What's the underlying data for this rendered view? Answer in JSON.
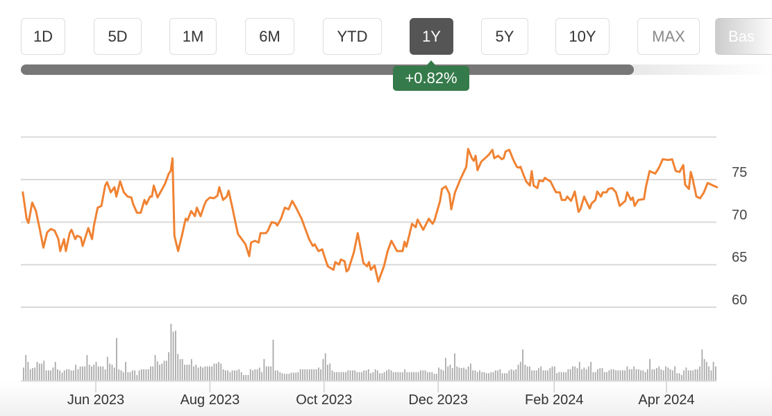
{
  "range_buttons": [
    {
      "label": "1D",
      "active": false
    },
    {
      "label": "5D",
      "active": false
    },
    {
      "label": "1M",
      "active": false
    },
    {
      "label": "6M",
      "active": false
    },
    {
      "label": "YTD",
      "active": false
    },
    {
      "label": "1Y",
      "active": true
    },
    {
      "label": "5Y",
      "active": false
    },
    {
      "label": "10Y",
      "active": false
    },
    {
      "label": "MAX",
      "active": false
    },
    {
      "label": "Bas",
      "active": false
    }
  ],
  "change_badge": {
    "label": "+0.82%",
    "color": "#357a4a"
  },
  "range_progress_percent": 81.6,
  "chart_data": {
    "type": "line",
    "title": "",
    "xlabel": "",
    "ylabel": "",
    "line_color": "#f08232",
    "volume_color": "#aaaaaa",
    "ylim": [
      57,
      82
    ],
    "y_gridlines": [
      60,
      65,
      70,
      75,
      80
    ],
    "y_ticks": [
      {
        "value": 60,
        "label": "60"
      },
      {
        "value": 65,
        "label": "65"
      },
      {
        "value": 70,
        "label": "70"
      },
      {
        "value": 75,
        "label": "75"
      }
    ],
    "x_ticks": [
      {
        "date": "2023-06-01",
        "label": "Jun 2023"
      },
      {
        "date": "2023-08-01",
        "label": "Aug 2023"
      },
      {
        "date": "2023-10-01",
        "label": "Oct 2023"
      },
      {
        "date": "2023-12-01",
        "label": "Dec 2023"
      },
      {
        "date": "2024-02-01",
        "label": "Feb 2024"
      },
      {
        "date": "2024-04-01",
        "label": "Apr 2024"
      }
    ],
    "grid": true,
    "series": [
      {
        "dates": [
          "2023-04-23",
          "2023-04-25",
          "2023-04-26",
          "2023-04-28",
          "2023-04-30",
          "2023-05-02",
          "2023-05-04",
          "2023-05-06",
          "2023-05-08",
          "2023-05-10",
          "2023-05-12",
          "2023-05-13",
          "2023-05-15",
          "2023-05-16",
          "2023-05-18",
          "2023-05-19",
          "2023-05-21",
          "2023-05-22",
          "2023-05-24",
          "2023-05-25",
          "2023-05-28",
          "2023-05-30",
          "2023-05-31",
          "2023-06-02",
          "2023-06-04",
          "2023-06-06",
          "2023-06-07",
          "2023-06-09",
          "2023-06-11",
          "2023-06-12",
          "2023-06-14",
          "2023-06-16",
          "2023-06-18",
          "2023-06-20",
          "2023-06-21",
          "2023-06-23",
          "2023-06-25",
          "2023-06-27",
          "2023-06-28",
          "2023-06-30",
          "2023-07-01",
          "2023-07-02",
          "2023-07-04",
          "2023-07-06",
          "2023-07-08",
          "2023-07-10",
          "2023-07-11",
          "2023-07-12",
          "2023-07-13",
          "2023-07-15",
          "2023-07-17",
          "2023-07-19",
          "2023-07-20",
          "2023-07-22",
          "2023-07-24",
          "2023-07-25",
          "2023-07-27",
          "2023-07-29",
          "2023-07-30",
          "2023-08-01",
          "2023-08-03",
          "2023-08-05",
          "2023-08-06",
          "2023-08-08",
          "2023-08-10",
          "2023-08-11",
          "2023-08-13",
          "2023-08-15",
          "2023-08-16",
          "2023-08-18",
          "2023-08-20",
          "2023-08-22",
          "2023-08-23",
          "2023-08-25",
          "2023-08-27",
          "2023-08-28",
          "2023-08-31",
          "2023-09-01",
          "2023-09-03",
          "2023-09-05",
          "2023-09-06",
          "2023-09-08",
          "2023-09-10",
          "2023-09-12",
          "2023-09-14",
          "2023-09-16",
          "2023-09-19",
          "2023-09-21",
          "2023-09-23",
          "2023-09-25",
          "2023-09-26",
          "2023-09-28",
          "2023-09-30",
          "2023-10-01",
          "2023-10-03",
          "2023-10-06",
          "2023-10-07",
          "2023-10-09",
          "2023-10-10",
          "2023-10-12",
          "2023-10-13",
          "2023-10-14",
          "2023-10-17",
          "2023-10-19",
          "2023-10-21",
          "2023-10-22",
          "2023-10-24",
          "2023-10-25",
          "2023-10-26",
          "2023-10-28",
          "2023-10-30",
          "2023-11-02",
          "2023-11-04",
          "2023-11-06",
          "2023-11-09",
          "2023-11-12",
          "2023-11-13",
          "2023-11-14",
          "2023-11-17",
          "2023-11-19",
          "2023-11-20",
          "2023-11-23",
          "2023-11-26",
          "2023-11-28",
          "2023-11-29",
          "2023-12-02",
          "2023-12-03",
          "2023-12-05",
          "2023-12-07",
          "2023-12-08",
          "2023-12-10",
          "2023-12-13",
          "2023-12-16",
          "2023-12-17",
          "2023-12-19",
          "2023-12-20",
          "2023-12-21",
          "2023-12-22",
          "2023-12-24",
          "2023-12-26",
          "2023-12-28",
          "2023-12-29",
          "2023-12-30",
          "2023-12-31",
          "2024-01-02",
          "2024-01-04",
          "2024-01-05",
          "2024-01-06",
          "2024-01-08",
          "2024-01-10",
          "2024-01-12",
          "2024-01-13",
          "2024-01-14",
          "2024-01-15",
          "2024-01-17",
          "2024-01-19",
          "2024-01-20",
          "2024-01-21",
          "2024-01-23",
          "2024-01-24",
          "2024-01-26",
          "2024-01-27",
          "2024-01-29",
          "2024-01-30",
          "2024-02-01",
          "2024-02-02",
          "2024-02-04",
          "2024-02-05",
          "2024-02-07",
          "2024-02-08",
          "2024-02-10",
          "2024-02-11",
          "2024-02-12",
          "2024-02-14",
          "2024-02-15",
          "2024-02-17",
          "2024-02-18",
          "2024-02-20",
          "2024-02-21",
          "2024-02-23",
          "2024-02-24",
          "2024-02-26",
          "2024-02-27",
          "2024-02-29",
          "2024-03-01",
          "2024-03-03",
          "2024-03-05",
          "2024-03-07",
          "2024-03-09",
          "2024-03-10",
          "2024-03-11",
          "2024-03-13",
          "2024-03-14",
          "2024-03-15",
          "2024-03-17",
          "2024-03-20",
          "2024-03-21",
          "2024-03-23",
          "2024-03-26",
          "2024-03-28",
          "2024-03-30",
          "2024-04-02",
          "2024-04-04",
          "2024-04-06",
          "2024-04-08",
          "2024-04-10",
          "2024-04-11",
          "2024-04-13",
          "2024-04-14",
          "2024-04-15",
          "2024-04-17",
          "2024-04-19",
          "2024-04-21",
          "2024-04-23",
          "2024-04-25",
          "2024-04-28"
        ],
        "values": [
          73.5,
          70.4,
          69.9,
          72.3,
          71.3,
          69.2,
          67.0,
          68.8,
          69.2,
          69.0,
          68.0,
          66.6,
          68.0,
          66.6,
          68.7,
          69.1,
          68.0,
          68.4,
          68.2,
          67.2,
          69.3,
          68.0,
          69.6,
          71.7,
          71.9,
          74.3,
          74.7,
          73.5,
          74.1,
          73.0,
          74.8,
          73.5,
          73.0,
          72.9,
          72.1,
          71.1,
          71.1,
          72.6,
          72.1,
          73.0,
          73.0,
          74.3,
          72.9,
          73.7,
          74.5,
          75.7,
          76.0,
          77.5,
          68.4,
          66.6,
          68.4,
          70.4,
          70.2,
          71.3,
          70.7,
          71.7,
          70.7,
          72.0,
          72.5,
          72.9,
          72.8,
          73.1,
          74.1,
          72.6,
          73.0,
          73.7,
          71.7,
          69.6,
          68.6,
          68.0,
          67.4,
          66.0,
          67.6,
          67.8,
          67.6,
          68.7,
          68.7,
          69.0,
          70.0,
          69.9,
          69.6,
          70.4,
          71.7,
          71.5,
          72.5,
          71.7,
          70.4,
          69.2,
          68.0,
          67.2,
          67.4,
          66.6,
          66.8,
          66.1,
          64.8,
          64.4,
          65.3,
          65.0,
          65.6,
          65.4,
          64.2,
          64.4,
          66.5,
          68.7,
          66.4,
          65.2,
          64.8,
          65.3,
          64.4,
          64.9,
          63.0,
          64.8,
          66.6,
          67.8,
          66.6,
          66.6,
          67.7,
          67.1,
          69.8,
          69.4,
          70.3,
          69.1,
          70.4,
          69.8,
          70.2,
          72.5,
          73.9,
          74.2,
          73.3,
          71.5,
          73.5,
          75.1,
          76.5,
          78.6,
          77.5,
          77.2,
          77.8,
          76.1,
          77.1,
          77.5,
          77.9,
          78.2,
          78.5,
          77.5,
          77.8,
          77.4,
          77.5,
          78.3,
          78.5,
          77.4,
          76.5,
          76.4,
          76.5,
          75.9,
          74.8,
          74.3,
          76.0,
          74.3,
          74.0,
          74.9,
          74.8,
          75.2,
          74.9,
          74.8,
          73.9,
          73.5,
          73.5,
          72.6,
          72.6,
          73.0,
          72.5,
          73.0,
          73.6,
          71.2,
          71.5,
          73.0,
          72.5,
          71.6,
          72.2,
          72.6,
          73.6,
          73.0,
          73.5,
          73.5,
          73.9,
          74.0,
          73.5,
          71.9,
          72.3,
          72.5,
          73.5,
          72.6,
          72.9,
          71.9,
          72.6,
          72.7,
          74.1,
          76.0,
          75.7,
          76.4,
          77.4,
          77.3,
          77.4,
          76.0,
          75.9,
          76.7,
          74.4,
          73.9,
          75.9,
          75.1,
          73.0,
          72.8,
          73.5,
          74.6,
          74.4,
          74.1
        ]
      }
    ],
    "volume_relative": [
      23,
      45,
      33,
      20,
      22,
      23,
      33,
      30,
      30,
      35,
      18,
      18,
      18,
      23,
      33,
      20,
      18,
      14,
      18,
      20,
      20,
      18,
      18,
      28,
      20,
      25,
      25,
      25,
      45,
      28,
      25,
      28,
      33,
      25,
      25,
      25,
      20,
      42,
      30,
      28,
      23,
      75,
      20,
      18,
      15,
      33,
      15,
      15,
      18,
      18,
      10,
      18,
      20,
      20,
      20,
      20,
      25,
      25,
      45,
      34,
      28,
      30,
      35,
      35,
      50,
      100,
      86,
      88,
      47,
      38,
      38,
      28,
      28,
      28,
      38,
      25,
      28,
      23,
      25,
      23,
      25,
      25,
      25,
      25,
      30,
      30,
      33,
      30,
      20,
      18,
      18,
      15,
      18,
      18,
      18,
      20,
      15,
      10,
      10,
      10,
      20,
      18,
      20,
      20,
      23,
      15,
      38,
      25,
      25,
      25,
      72,
      18,
      18,
      15,
      13,
      12,
      12,
      12,
      14,
      14,
      14,
      15,
      20,
      20,
      20,
      20,
      20,
      20,
      20,
      20,
      23,
      20,
      38,
      48,
      28,
      30,
      18,
      15,
      15,
      15,
      15,
      15,
      15,
      18,
      18,
      18,
      18,
      15,
      15,
      15,
      18,
      18,
      20,
      13,
      15,
      20,
      18,
      13,
      13,
      15,
      18,
      20,
      18,
      15,
      15,
      15,
      15,
      15,
      20,
      15,
      15,
      15,
      15,
      15,
      15,
      18,
      18,
      18,
      15,
      15,
      15,
      12,
      12,
      23,
      20,
      18,
      40,
      25,
      28,
      22,
      48,
      25,
      23,
      22,
      23,
      20,
      25,
      30,
      18,
      18,
      15,
      18,
      15,
      15,
      13,
      13,
      15,
      15,
      18,
      18,
      20,
      13,
      13,
      13,
      18,
      20,
      18,
      20,
      28,
      33,
      55,
      28,
      25,
      25,
      18,
      18,
      18,
      22,
      25,
      18,
      18,
      18,
      22,
      25,
      25,
      13,
      15,
      15,
      15,
      15,
      20,
      20,
      25,
      25,
      22,
      33,
      20,
      23,
      20,
      25,
      33,
      15,
      15,
      20,
      22,
      22,
      15,
      15,
      18,
      20,
      20,
      18,
      18,
      18,
      18,
      18,
      25,
      20,
      20,
      25,
      20,
      20,
      18,
      18,
      15,
      20,
      38,
      20,
      20,
      22,
      25,
      20,
      18,
      25,
      23,
      20,
      18,
      25,
      13,
      13,
      10,
      18,
      23,
      18,
      18,
      18,
      20,
      20,
      25,
      55,
      38,
      33,
      25,
      18,
      33,
      25
    ]
  }
}
